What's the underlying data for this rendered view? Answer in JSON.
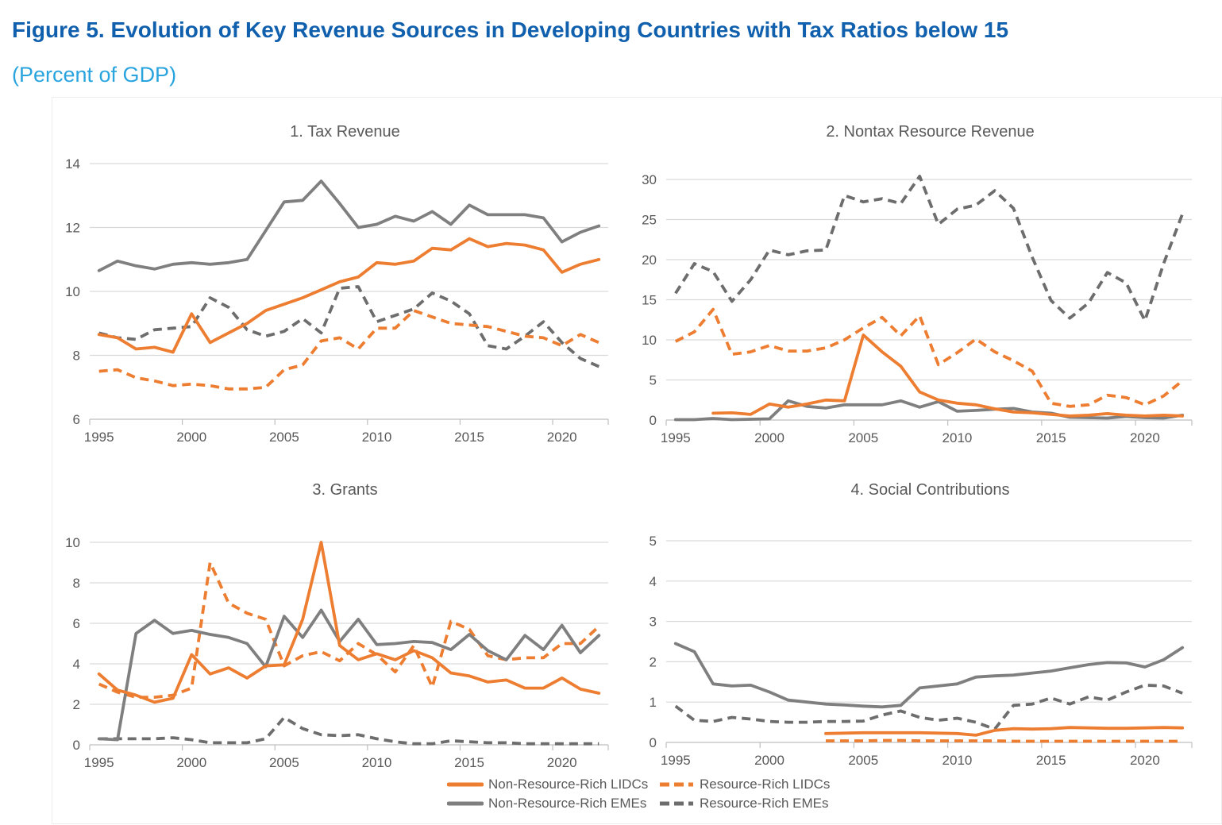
{
  "header": {
    "title": "Figure 5. Evolution of Key Revenue Sources in Developing Countries with Tax Ratios below 15",
    "subtitle": "(Percent of GDP)"
  },
  "colors": {
    "title_blue": "#1060AE",
    "subtitle_blue": "#29A4DE",
    "orange": "#ED7D31",
    "gray_solid": "#7F7F7F",
    "gray_dashed": "#6D6D6D",
    "axis_text": "#595959",
    "gridline": "#D9D9D9",
    "axis_line": "#BFBFBF"
  },
  "years": [
    1995,
    1996,
    1997,
    1998,
    1999,
    2000,
    2001,
    2002,
    2003,
    2004,
    2005,
    2006,
    2007,
    2008,
    2009,
    2010,
    2011,
    2012,
    2013,
    2014,
    2015,
    2016,
    2017,
    2018,
    2019,
    2020,
    2021,
    2022
  ],
  "legend": {
    "items": [
      {
        "label": "Non-Resource-Rich LIDCs",
        "color": "#ED7D31",
        "dashed": false
      },
      {
        "label": "Resource-Rich LIDCs",
        "color": "#ED7D31",
        "dashed": true
      },
      {
        "label": "Non-Resource-Rich EMEs",
        "color": "#7F7F7F",
        "dashed": false
      },
      {
        "label": "Resource-Rich EMEs",
        "color": "#6D6D6D",
        "dashed": true
      }
    ]
  },
  "chart_data": [
    {
      "type": "line",
      "title": "1. Tax Revenue",
      "xlabel": "",
      "ylabel": "",
      "ylim": [
        6,
        14
      ],
      "ytick_step": 2,
      "xticks": [
        1995,
        2000,
        2005,
        2010,
        2015,
        2020
      ],
      "series": [
        {
          "name": "Non-Resource-Rich LIDCs",
          "color": "#ED7D31",
          "dashed": false,
          "values": [
            8.65,
            8.55,
            8.2,
            8.25,
            8.1,
            9.3,
            8.4,
            8.7,
            9.0,
            9.4,
            9.6,
            9.8,
            10.05,
            10.3,
            10.45,
            10.9,
            10.85,
            10.95,
            11.35,
            11.3,
            11.65,
            11.4,
            11.5,
            11.45,
            11.3,
            10.6,
            10.85,
            11.0
          ]
        },
        {
          "name": "Non-Resource-Rich EMEs",
          "color": "#7F7F7F",
          "dashed": false,
          "values": [
            10.65,
            10.95,
            10.8,
            10.7,
            10.85,
            10.9,
            10.85,
            10.9,
            11.0,
            11.9,
            12.8,
            12.85,
            13.45,
            12.75,
            12.0,
            12.1,
            12.35,
            12.2,
            12.5,
            12.1,
            12.7,
            12.4,
            12.4,
            12.4,
            12.3,
            11.55,
            11.85,
            12.05
          ]
        },
        {
          "name": "Resource-Rich LIDCs",
          "color": "#ED7D31",
          "dashed": true,
          "values": [
            7.5,
            7.55,
            7.3,
            7.2,
            7.05,
            7.1,
            7.05,
            6.95,
            6.95,
            7.0,
            7.55,
            7.7,
            8.45,
            8.55,
            8.2,
            8.85,
            8.85,
            9.4,
            9.2,
            9.0,
            8.95,
            8.9,
            8.75,
            8.6,
            8.55,
            8.3,
            8.65,
            8.4
          ]
        },
        {
          "name": "Resource-Rich EMEs",
          "color": "#6D6D6D",
          "dashed": true,
          "values": [
            8.7,
            8.55,
            8.5,
            8.8,
            8.85,
            8.9,
            9.8,
            9.5,
            8.8,
            8.6,
            8.75,
            9.15,
            8.7,
            10.1,
            10.15,
            9.05,
            9.25,
            9.45,
            9.95,
            9.7,
            9.3,
            8.3,
            8.2,
            8.6,
            9.05,
            8.4,
            7.9,
            7.65
          ]
        }
      ]
    },
    {
      "type": "line",
      "title": "2. Nontax Resource Revenue",
      "xlabel": "",
      "ylabel": "",
      "ylim": [
        0,
        30
      ],
      "ytick_step": 5,
      "xticks": [
        1995,
        2000,
        2005,
        2010,
        2015,
        2020
      ],
      "series": [
        {
          "name": "Non-Resource-Rich LIDCs",
          "color": "#ED7D31",
          "dashed": false,
          "values": [
            null,
            null,
            0.85,
            0.9,
            0.7,
            2.0,
            1.6,
            2.0,
            2.5,
            2.4,
            10.6,
            8.5,
            6.7,
            3.5,
            2.5,
            2.1,
            1.9,
            1.4,
            1.0,
            0.9,
            0.7,
            0.5,
            0.6,
            0.8,
            0.6,
            0.5,
            0.6,
            0.5
          ]
        },
        {
          "name": "Non-Resource-Rich EMEs",
          "color": "#7F7F7F",
          "dashed": false,
          "values": [
            0.05,
            0.05,
            0.2,
            0.05,
            0.1,
            0.15,
            2.4,
            1.7,
            1.5,
            1.9,
            1.9,
            1.9,
            2.4,
            1.6,
            2.3,
            1.1,
            1.2,
            1.35,
            1.45,
            1.0,
            0.85,
            0.35,
            0.3,
            0.25,
            0.45,
            0.3,
            0.25,
            0.6
          ]
        },
        {
          "name": "Resource-Rich LIDCs",
          "color": "#ED7D31",
          "dashed": true,
          "values": [
            9.8,
            11.0,
            13.8,
            8.2,
            8.5,
            9.3,
            8.6,
            8.6,
            9.0,
            10.0,
            11.5,
            12.8,
            10.5,
            13.0,
            6.9,
            8.4,
            10.1,
            8.5,
            7.4,
            6.1,
            2.1,
            1.7,
            1.9,
            3.1,
            2.8,
            1.9,
            3.0,
            4.9
          ]
        },
        {
          "name": "Resource-Rich EMEs",
          "color": "#6D6D6D",
          "dashed": true,
          "values": [
            15.8,
            19.5,
            18.5,
            14.8,
            17.5,
            21.2,
            20.6,
            21.1,
            21.2,
            28.0,
            27.2,
            27.6,
            27.0,
            30.4,
            24.4,
            26.3,
            26.8,
            28.6,
            26.4,
            20.3,
            14.9,
            12.7,
            14.6,
            18.4,
            17.1,
            12.4,
            19.5,
            25.7
          ]
        }
      ]
    },
    {
      "type": "line",
      "title": "3. Grants",
      "xlabel": "",
      "ylabel": "",
      "ylim": [
        0,
        10
      ],
      "ytick_step": 2,
      "xticks": [
        1995,
        2000,
        2005,
        2010,
        2015,
        2020
      ],
      "series": [
        {
          "name": "Non-Resource-Rich LIDCs",
          "color": "#ED7D31",
          "dashed": false,
          "values": [
            3.5,
            2.7,
            2.45,
            2.1,
            2.3,
            4.45,
            3.5,
            3.8,
            3.3,
            3.9,
            3.95,
            6.2,
            10.0,
            4.9,
            4.2,
            4.5,
            4.2,
            4.65,
            4.3,
            3.55,
            3.4,
            3.1,
            3.2,
            2.8,
            2.8,
            3.3,
            2.75,
            2.55
          ]
        },
        {
          "name": "Non-Resource-Rich EMEs",
          "color": "#7F7F7F",
          "dashed": false,
          "values": [
            0.3,
            0.25,
            5.5,
            6.15,
            5.5,
            5.65,
            5.45,
            5.3,
            5.0,
            3.85,
            6.35,
            5.3,
            6.65,
            5.1,
            6.2,
            4.95,
            5.0,
            5.1,
            5.05,
            4.7,
            5.45,
            4.65,
            4.2,
            5.4,
            4.7,
            5.9,
            4.55,
            5.4
          ]
        },
        {
          "name": "Resource-Rich LIDCs",
          "color": "#ED7D31",
          "dashed": true,
          "values": [
            3.0,
            2.6,
            2.35,
            2.35,
            2.45,
            2.8,
            9.0,
            7.0,
            6.5,
            6.2,
            3.9,
            4.4,
            4.6,
            4.15,
            5.0,
            4.45,
            3.6,
            4.9,
            2.85,
            6.1,
            5.7,
            4.4,
            4.2,
            4.3,
            4.3,
            5.0,
            5.0,
            5.85
          ]
        },
        {
          "name": "Resource-Rich EMEs",
          "color": "#6D6D6D",
          "dashed": true,
          "values": [
            0.3,
            0.3,
            0.3,
            0.3,
            0.35,
            0.25,
            0.1,
            0.1,
            0.1,
            0.3,
            1.35,
            0.8,
            0.5,
            0.45,
            0.5,
            0.3,
            0.15,
            0.05,
            0.05,
            0.2,
            0.15,
            0.1,
            0.1,
            0.05,
            0.05,
            0.05,
            0.05,
            0.05
          ]
        }
      ]
    },
    {
      "type": "line",
      "title": "4. Social Contributions",
      "xlabel": "",
      "ylabel": "",
      "ylim": [
        0,
        5
      ],
      "ytick_step": 1,
      "xticks": [
        1995,
        2000,
        2005,
        2010,
        2015,
        2020
      ],
      "series": [
        {
          "name": "Non-Resource-Rich LIDCs",
          "color": "#ED7D31",
          "dashed": false,
          "values": [
            null,
            null,
            null,
            null,
            null,
            null,
            null,
            null,
            0.22,
            0.23,
            0.24,
            0.24,
            0.24,
            0.24,
            0.23,
            0.22,
            0.18,
            0.3,
            0.34,
            0.33,
            0.34,
            0.37,
            0.36,
            0.35,
            0.35,
            0.36,
            0.37,
            0.36
          ]
        },
        {
          "name": "Non-Resource-Rich EMEs",
          "color": "#7F7F7F",
          "dashed": false,
          "values": [
            2.45,
            2.25,
            1.45,
            1.4,
            1.42,
            1.25,
            1.05,
            1.0,
            0.95,
            0.93,
            0.9,
            0.88,
            0.92,
            1.35,
            1.4,
            1.45,
            1.62,
            1.65,
            1.67,
            1.72,
            1.77,
            1.85,
            1.93,
            1.98,
            1.97,
            1.87,
            2.05,
            2.35
          ]
        },
        {
          "name": "Resource-Rich LIDCs",
          "color": "#ED7D31",
          "dashed": true,
          "values": [
            null,
            null,
            null,
            null,
            null,
            null,
            null,
            null,
            0.04,
            0.04,
            0.04,
            0.05,
            0.05,
            0.04,
            0.04,
            0.04,
            0.04,
            0.04,
            0.03,
            0.03,
            0.03,
            0.03,
            0.03,
            0.03,
            0.03,
            0.03,
            0.03,
            0.03
          ]
        },
        {
          "name": "Resource-Rich EMEs",
          "color": "#6D6D6D",
          "dashed": true,
          "values": [
            0.9,
            0.55,
            0.52,
            0.62,
            0.58,
            0.52,
            0.5,
            0.5,
            0.52,
            0.52,
            0.53,
            0.68,
            0.78,
            0.62,
            0.55,
            0.6,
            0.5,
            0.33,
            0.92,
            0.95,
            1.1,
            0.95,
            1.13,
            1.05,
            1.25,
            1.42,
            1.4,
            1.22
          ]
        }
      ]
    }
  ]
}
